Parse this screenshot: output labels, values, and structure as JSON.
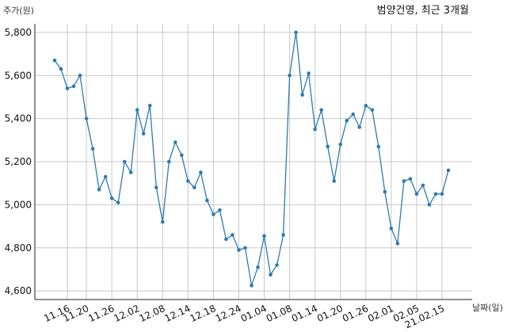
{
  "chart_data": {
    "type": "line",
    "title": "범양건영, 최근 3개월",
    "xlabel": "날짜(일)",
    "ylabel": "주가(원)",
    "ylim": [
      4560,
      5840
    ],
    "yticks": [
      4600,
      4800,
      5000,
      5200,
      5400,
      5600,
      5800
    ],
    "ytick_labels": [
      "4,600",
      "4,800",
      "5,000",
      "5,200",
      "5,400",
      "5,600",
      "5,800"
    ],
    "xtick_labels": [
      "11.16",
      "11.20",
      "11.26",
      "12.02",
      "12.08",
      "12.14",
      "12.18",
      "12.24",
      "01.04",
      "01.08",
      "01.14",
      "01.20",
      "01.26",
      "02.01",
      "02.05",
      "21.02.15"
    ],
    "xtick_indices": [
      2,
      5,
      9,
      13,
      17,
      21,
      25,
      29,
      33,
      37,
      41,
      45,
      49,
      53,
      57,
      61
    ],
    "grid": true,
    "color": "#2e7bb0",
    "series": [
      {
        "values": [
          5670,
          5630,
          5540,
          5550,
          5600,
          5400,
          5260,
          5070,
          5130,
          5030,
          5010,
          5200,
          5150,
          5440,
          5330,
          5460,
          5080,
          4920,
          5200,
          5290,
          5230,
          5110,
          5080,
          5150,
          5020,
          4955,
          4975,
          4840,
          4860,
          4790,
          4800,
          4625,
          4710,
          4855,
          4675,
          4720,
          4860,
          5600,
          5800,
          5510,
          5610,
          5350,
          5440,
          5270,
          5110,
          5280,
          5390,
          5420,
          5360,
          5460,
          5440,
          5270,
          5060,
          4890,
          4820,
          5110,
          5120,
          5050,
          5090,
          5000,
          5050,
          5050,
          5160
        ]
      }
    ]
  }
}
